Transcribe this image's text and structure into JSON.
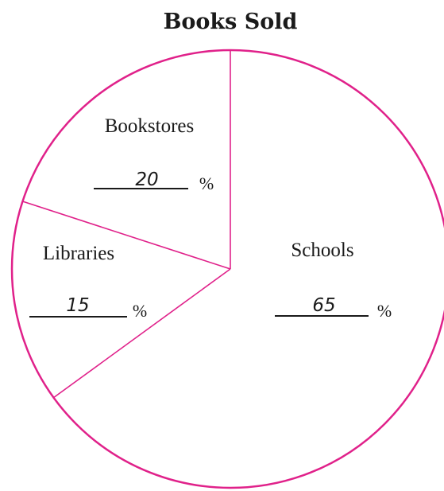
{
  "chart_data": {
    "type": "pie",
    "title": "Books Sold",
    "slices": [
      {
        "label": "Bookstores",
        "value": 20,
        "value_text": "20",
        "unit": "%"
      },
      {
        "label": "Libraries",
        "value": 15,
        "value_text": "15",
        "unit": "%"
      },
      {
        "label": "Schools",
        "value": 65,
        "value_text": "65",
        "unit": "%"
      }
    ],
    "start_angle": "12 o'clock",
    "direction": "counterclockwise",
    "legend": "none",
    "colors": {
      "outline": "#e0218a",
      "text": "#1a1a1a",
      "background": "#ffffff"
    }
  }
}
